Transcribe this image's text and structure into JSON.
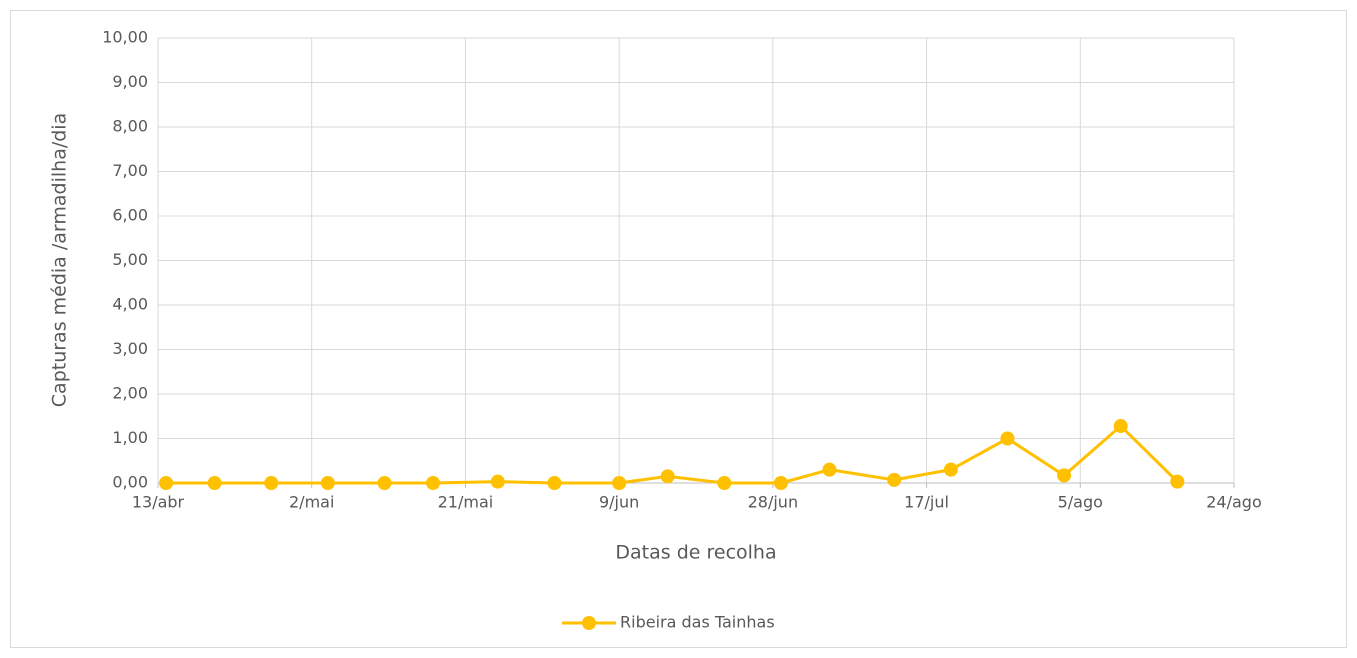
{
  "chart_data": {
    "type": "line",
    "y_label": "Capturas média /armadilha/dia",
    "x_label": "Datas de recolha",
    "x": [
      1,
      7,
      14,
      21,
      28,
      34,
      42,
      49,
      57,
      63,
      70,
      77,
      83,
      91,
      98,
      105,
      112,
      119,
      126
    ],
    "series": [
      {
        "name": "Ribeira das Tainhas",
        "color": "#ffc000",
        "values": [
          0,
          0,
          0,
          0,
          0,
          0,
          0.03,
          0,
          0,
          0.15,
          0,
          0,
          0.3,
          0.07,
          0.3,
          1.0,
          0.17,
          1.28,
          0.03
        ]
      }
    ],
    "xlim": [
      0,
      133
    ],
    "xticks": [
      {
        "value": 0,
        "label": "13/abr"
      },
      {
        "value": 19,
        "label": "2/mai"
      },
      {
        "value": 38,
        "label": "21/mai"
      },
      {
        "value": 57,
        "label": "9/jun"
      },
      {
        "value": 76,
        "label": "28/jun"
      },
      {
        "value": 95,
        "label": "17/jul"
      },
      {
        "value": 114,
        "label": "5/ago"
      },
      {
        "value": 133,
        "label": "24/ago"
      }
    ],
    "ylim": [
      0,
      10
    ],
    "yticks": [
      {
        "value": 0,
        "label": "0,00"
      },
      {
        "value": 1,
        "label": "1,00"
      },
      {
        "value": 2,
        "label": "2,00"
      },
      {
        "value": 3,
        "label": "3,00"
      },
      {
        "value": 4,
        "label": "4,00"
      },
      {
        "value": 5,
        "label": "5,00"
      },
      {
        "value": 6,
        "label": "6,00"
      },
      {
        "value": 7,
        "label": "7,00"
      },
      {
        "value": 8,
        "label": "8,00"
      },
      {
        "value": 9,
        "label": "9,00"
      },
      {
        "value": 10,
        "label": "10,00"
      }
    ],
    "grid": true,
    "legend": "bottom"
  }
}
